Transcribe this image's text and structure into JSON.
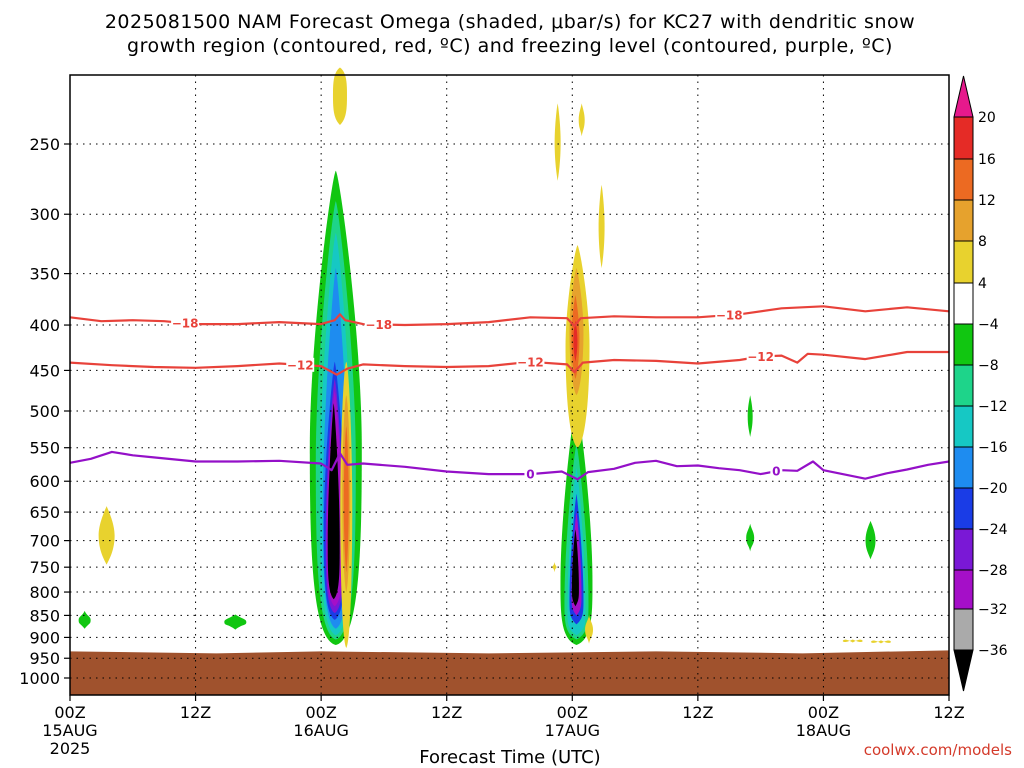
{
  "chart_data": {
    "type": "heatmap",
    "title_line1": "2025081500 NAM Forecast Omega (shaded, μbar/s) for KC27 with dendritic snow",
    "title_line2": "growth region (contoured, red, ºC) and freezing level (contoured, purple, ºC)",
    "xlabel": "Forecast Time (UTC)",
    "credit": "coolwx.com/models",
    "y_axis": {
      "scale": "pressure (hPa), decreasing upward",
      "ticks": [
        250,
        300,
        350,
        400,
        450,
        500,
        550,
        600,
        650,
        700,
        750,
        800,
        850,
        900,
        950,
        1000
      ],
      "ylim": [
        1025,
        205
      ]
    },
    "x_axis": {
      "unit": "forecast hour",
      "xlim": [
        0,
        84
      ],
      "ticks": [
        {
          "x": 0,
          "label": "00Z",
          "sub": "15AUG",
          "sub2": "2025"
        },
        {
          "x": 12,
          "label": "12Z",
          "sub": "",
          "sub2": ""
        },
        {
          "x": 24,
          "label": "00Z",
          "sub": "16AUG",
          "sub2": ""
        },
        {
          "x": 36,
          "label": "12Z",
          "sub": "",
          "sub2": ""
        },
        {
          "x": 48,
          "label": "00Z",
          "sub": "17AUG",
          "sub2": ""
        },
        {
          "x": 60,
          "label": "12Z",
          "sub": "",
          "sub2": ""
        },
        {
          "x": 72,
          "label": "00Z",
          "sub": "18AUG",
          "sub2": ""
        },
        {
          "x": 84,
          "label": "12Z",
          "sub": "",
          "sub2": ""
        }
      ]
    },
    "colorbar": {
      "labels": [
        "20",
        "16",
        "12",
        "8",
        "4",
        "-4",
        "-8",
        "-12",
        "-16",
        "-20",
        "-24",
        "-28",
        "-32",
        "-36"
      ],
      "top_arrow_color": "#e6198c",
      "bottom_arrow_color": "#000000",
      "bins": [
        {
          "color": "#e52b26",
          "range": [
            16,
            20
          ]
        },
        {
          "color": "#ec6a22",
          "range": [
            12,
            16
          ]
        },
        {
          "color": "#e6a22d",
          "range": [
            8,
            12
          ]
        },
        {
          "color": "#e8d22e",
          "range": [
            4,
            8
          ]
        },
        {
          "color": "#ffffff",
          "range": [
            -4,
            4
          ]
        },
        {
          "color": "#11c611",
          "range": [
            -8,
            -4
          ]
        },
        {
          "color": "#1ed48a",
          "range": [
            -12,
            -8
          ]
        },
        {
          "color": "#16c8c4",
          "range": [
            -16,
            -12
          ]
        },
        {
          "color": "#1e8cf0",
          "range": [
            -20,
            -16
          ]
        },
        {
          "color": "#1a3ce6",
          "range": [
            -24,
            -20
          ]
        },
        {
          "color": "#7a18d6",
          "range": [
            -28,
            -24
          ]
        },
        {
          "color": "#a50fc8",
          "range": [
            -32,
            -28
          ]
        },
        {
          "color": "#aaaaaa",
          "range": [
            -36,
            -32
          ]
        }
      ]
    },
    "ground": {
      "color": "#a0522d",
      "top_pressure": 938
    },
    "contours": [
      {
        "kind": "dendritic growth",
        "color": "#e8423a",
        "label": "-18",
        "label_x": [
          11,
          29.5,
          63
        ],
        "points": [
          [
            0,
            392
          ],
          [
            3,
            396
          ],
          [
            6,
            395
          ],
          [
            9,
            396
          ],
          [
            12,
            399
          ],
          [
            16,
            399
          ],
          [
            20,
            397
          ],
          [
            24,
            399
          ],
          [
            25.3,
            395
          ],
          [
            25.8,
            389
          ],
          [
            26.3,
            395
          ],
          [
            28,
            399
          ],
          [
            32,
            400
          ],
          [
            36,
            399
          ],
          [
            40,
            397
          ],
          [
            44,
            392
          ],
          [
            47.5,
            393
          ],
          [
            48.2,
            401
          ],
          [
            48.8,
            393
          ],
          [
            52,
            391
          ],
          [
            56,
            392
          ],
          [
            60,
            392
          ],
          [
            64,
            389
          ],
          [
            68,
            383
          ],
          [
            72,
            381
          ],
          [
            76,
            386
          ],
          [
            80,
            382
          ],
          [
            84,
            386
          ]
        ]
      },
      {
        "kind": "dendritic growth",
        "color": "#e8423a",
        "label": "-12",
        "label_x": [
          22,
          44,
          66
        ],
        "points": [
          [
            0,
            441
          ],
          [
            4,
            444
          ],
          [
            8,
            446
          ],
          [
            12,
            447
          ],
          [
            16,
            445
          ],
          [
            20,
            442
          ],
          [
            24,
            445
          ],
          [
            25.5,
            455
          ],
          [
            26.5,
            448
          ],
          [
            28,
            443
          ],
          [
            32,
            445
          ],
          [
            36,
            446
          ],
          [
            40,
            445
          ],
          [
            44,
            440
          ],
          [
            47.5,
            443
          ],
          [
            48.2,
            452
          ],
          [
            49,
            441
          ],
          [
            52,
            438
          ],
          [
            56,
            439
          ],
          [
            60,
            442
          ],
          [
            64,
            438
          ],
          [
            66,
            434
          ],
          [
            68,
            433
          ],
          [
            69.5,
            441
          ],
          [
            70.5,
            431
          ],
          [
            72,
            432
          ],
          [
            76,
            437
          ],
          [
            80,
            429
          ],
          [
            84,
            429
          ]
        ]
      },
      {
        "kind": "freezing level",
        "color": "#9410c8",
        "label": "0",
        "label_x": [
          44,
          67.5
        ],
        "points": [
          [
            0,
            572
          ],
          [
            2,
            566
          ],
          [
            4,
            556
          ],
          [
            6,
            561
          ],
          [
            8,
            564
          ],
          [
            12,
            570
          ],
          [
            16,
            570
          ],
          [
            20,
            569
          ],
          [
            24,
            573
          ],
          [
            25,
            583
          ],
          [
            25.8,
            558
          ],
          [
            26.5,
            575
          ],
          [
            28,
            573
          ],
          [
            32,
            578
          ],
          [
            36,
            585
          ],
          [
            40,
            589
          ],
          [
            44,
            589
          ],
          [
            47,
            585
          ],
          [
            48.5,
            597
          ],
          [
            49.5,
            586
          ],
          [
            52,
            581
          ],
          [
            54,
            572
          ],
          [
            56,
            569
          ],
          [
            58,
            577
          ],
          [
            60,
            576
          ],
          [
            62,
            580
          ],
          [
            64,
            583
          ],
          [
            66,
            589
          ],
          [
            68,
            583
          ],
          [
            69.5,
            584
          ],
          [
            71,
            570
          ],
          [
            72,
            583
          ],
          [
            76,
            596
          ],
          [
            78,
            588
          ],
          [
            80,
            582
          ],
          [
            82,
            575
          ],
          [
            84,
            570
          ]
        ]
      }
    ],
    "omega_features": [
      {
        "desc": "strong ascent column",
        "x_center_hour": 25.5,
        "top_pressure": 270,
        "bottom_pressure": 915,
        "min_value": -36
      },
      {
        "desc": "strong ascent column",
        "x_center_hour": 48.5,
        "top_pressure": 490,
        "bottom_pressure": 915,
        "min_value": -36
      },
      {
        "desc": "descent (positive omega)",
        "x_center_hour": 48.5,
        "top_pressure": 330,
        "bottom_pressure": 500,
        "max_value": 16
      },
      {
        "desc": "descent (positive omega)",
        "x_center_hour": 26.3,
        "top_pressure": 450,
        "bottom_pressure": 920,
        "max_value": 12
      }
    ]
  }
}
